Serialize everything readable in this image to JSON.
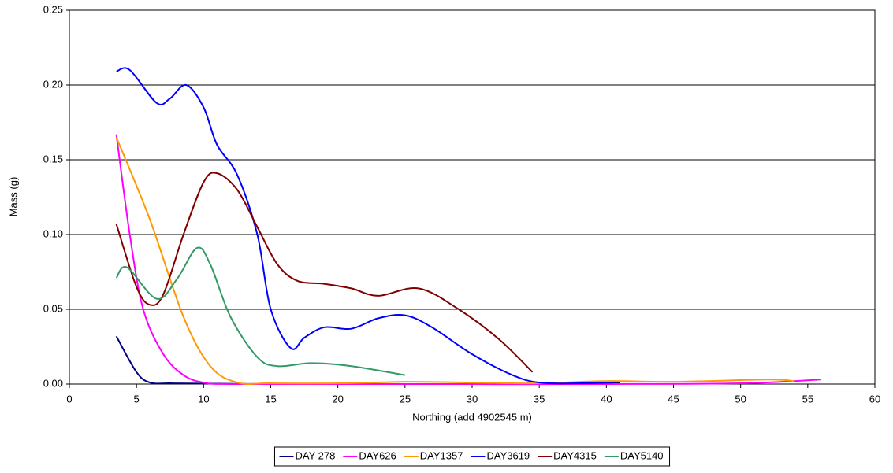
{
  "chart_data": {
    "type": "line",
    "xlabel": "Northing (add 4902545 m)",
    "ylabel": "Mass (g)",
    "xlim": [
      0,
      60
    ],
    "xticks": [
      0,
      5,
      10,
      15,
      20,
      25,
      30,
      35,
      40,
      45,
      50,
      55,
      60
    ],
    "ylim": [
      0,
      0.25
    ],
    "yticks": [
      {
        "value": 0,
        "label": "0.00"
      },
      0.05,
      {
        "value": 0.1,
        "label": "0.10"
      },
      0.15,
      {
        "value": 0.2,
        "label": "0.20"
      },
      0.25
    ],
    "grid": true,
    "legend": "bottom",
    "series": [
      {
        "name": "DAY 278",
        "color": "#000080",
        "x": [
          3.5,
          5,
          6,
          7.5,
          10,
          15,
          20,
          25,
          30,
          35,
          40,
          41
        ],
        "values": [
          0.032,
          0.008,
          0.001,
          0.0005,
          0.0003,
          0,
          0,
          0,
          0,
          0,
          0.001,
          0.0008
        ]
      },
      {
        "name": "DAY626",
        "color": "#FF00FF",
        "x": [
          3.5,
          4.5,
          5.5,
          7,
          8.5,
          10,
          12,
          20,
          30,
          40,
          50,
          56
        ],
        "values": [
          0.167,
          0.1,
          0.05,
          0.02,
          0.006,
          0.001,
          0,
          0,
          0,
          0,
          0.0005,
          0.003
        ]
      },
      {
        "name": "DAY1357",
        "color": "#FF9900",
        "x": [
          3.5,
          6,
          8.5,
          10.5,
          12.5,
          15,
          20,
          25,
          30,
          35,
          40,
          45,
          52,
          54
        ],
        "values": [
          0.165,
          0.11,
          0.045,
          0.012,
          0.001,
          0.0005,
          0.0005,
          0.0015,
          0.001,
          0.0005,
          0.002,
          0.0015,
          0.003,
          0.002
        ]
      },
      {
        "name": "DAY3619",
        "color": "#0000FF",
        "x": [
          3.5,
          4.5,
          6.5,
          7.5,
          8.7,
          10,
          11,
          12.5,
          14,
          15,
          16.5,
          17.5,
          19,
          21,
          23,
          25,
          27,
          30,
          33,
          35,
          38,
          40.5
        ],
        "values": [
          0.209,
          0.21,
          0.188,
          0.191,
          0.2,
          0.185,
          0.16,
          0.14,
          0.1,
          0.05,
          0.024,
          0.031,
          0.038,
          0.037,
          0.044,
          0.046,
          0.038,
          0.02,
          0.006,
          0.001,
          0.0005,
          0.001
        ]
      },
      {
        "name": "DAY4315",
        "color": "#800000",
        "x": [
          3.5,
          5,
          6,
          7,
          8.5,
          10,
          11,
          12.5,
          14,
          15.5,
          17,
          19,
          21,
          23,
          26,
          29,
          32,
          34.5
        ],
        "values": [
          0.107,
          0.065,
          0.053,
          0.06,
          0.1,
          0.135,
          0.141,
          0.13,
          0.105,
          0.08,
          0.069,
          0.067,
          0.064,
          0.059,
          0.064,
          0.05,
          0.03,
          0.008
        ]
      },
      {
        "name": "DAY5140",
        "color": "#339966",
        "x": [
          3.5,
          4.3,
          6.5,
          8,
          9.5,
          10.5,
          12,
          14,
          15.5,
          18,
          21,
          25
        ],
        "values": [
          0.071,
          0.078,
          0.057,
          0.07,
          0.091,
          0.08,
          0.045,
          0.018,
          0.012,
          0.014,
          0.012,
          0.006
        ]
      }
    ]
  }
}
